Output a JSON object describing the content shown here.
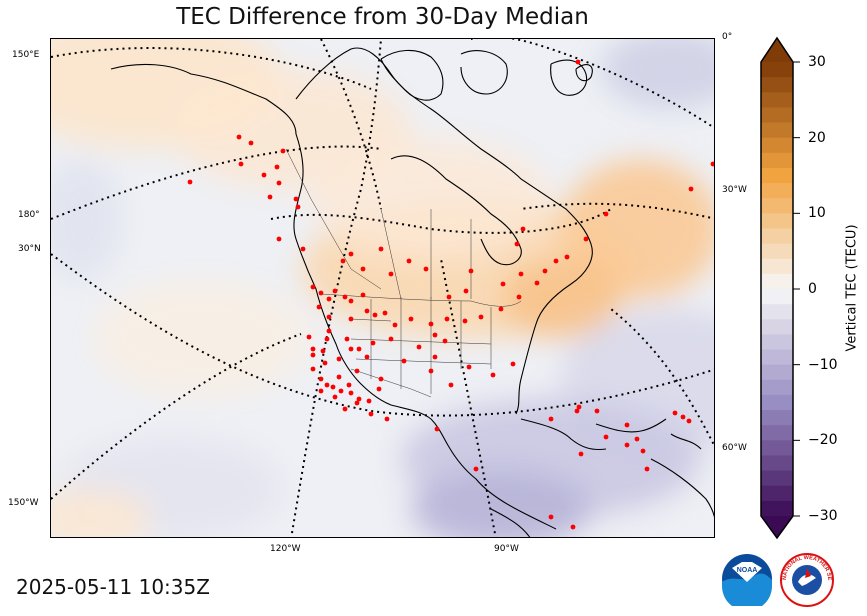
{
  "title": "TEC Difference from 30-Day Median",
  "timestamp": "2025-05-11 10:35Z",
  "colorbar": {
    "label": "Vertical TEC (TECU)",
    "min": -30,
    "max": 30,
    "ticks": [
      "30",
      "20",
      "10",
      "0",
      "−10",
      "−20",
      "−30"
    ],
    "negative_color": "#3b0a55",
    "zero_color": "#f7f7f7",
    "positive_color": "#7f3b08"
  },
  "graticule_labels": {
    "left": [
      "150°E",
      "180°",
      "30°N",
      "150°W"
    ],
    "right": [
      "0°",
      "30°W",
      "60°W"
    ],
    "bottom": [
      "120°W",
      "90°W"
    ]
  },
  "stations_color": "#ff0000",
  "logos": {
    "noaa_text": "NOAA",
    "nws_text": "NATIONAL WEATHER SERVICE"
  }
}
